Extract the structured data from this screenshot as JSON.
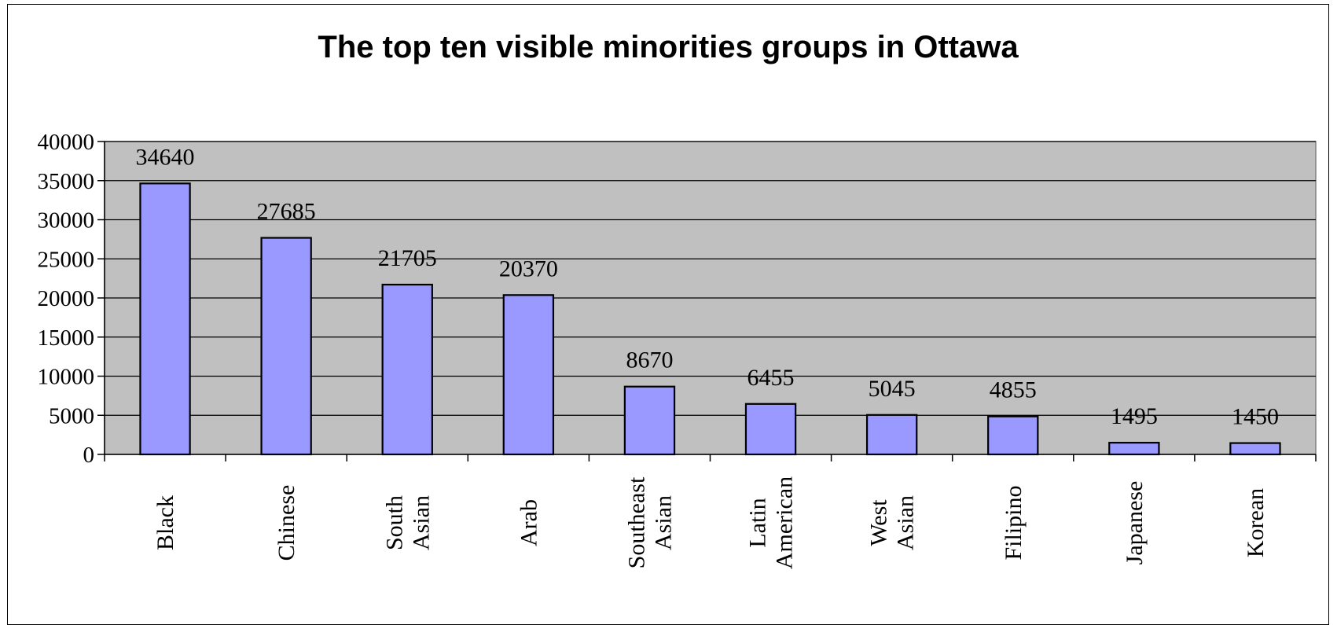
{
  "chart_data": {
    "type": "bar",
    "title": "The top ten visible minorities groups in Ottawa",
    "xlabel": "",
    "ylabel": "",
    "categories": [
      [
        "Black"
      ],
      [
        "Chinese"
      ],
      [
        "South",
        "Asian"
      ],
      [
        "Arab"
      ],
      [
        "Southeast",
        "Asian"
      ],
      [
        "Latin",
        "American"
      ],
      [
        "West",
        "Asian"
      ],
      [
        "Filipino"
      ],
      [
        "Japanese"
      ],
      [
        "Korean"
      ]
    ],
    "values": [
      34640,
      27685,
      21705,
      20370,
      8670,
      6455,
      5045,
      4855,
      1495,
      1450
    ],
    "data_labels": [
      "34640",
      "27685",
      "21705",
      "20370",
      "8670",
      "6455",
      "5045",
      "4855",
      "1495",
      "1450"
    ],
    "ylim": [
      0,
      40000
    ],
    "yticks": [
      0,
      5000,
      10000,
      15000,
      20000,
      25000,
      30000,
      35000,
      40000
    ],
    "ytick_labels": [
      "0",
      "5000",
      "10000",
      "15000",
      "20000",
      "25000",
      "30000",
      "35000",
      "40000"
    ],
    "grid": true,
    "legend": false,
    "colors": {
      "bar": "#9999ff",
      "plot_background": "#c0c0c0",
      "grid": "#000000"
    }
  }
}
